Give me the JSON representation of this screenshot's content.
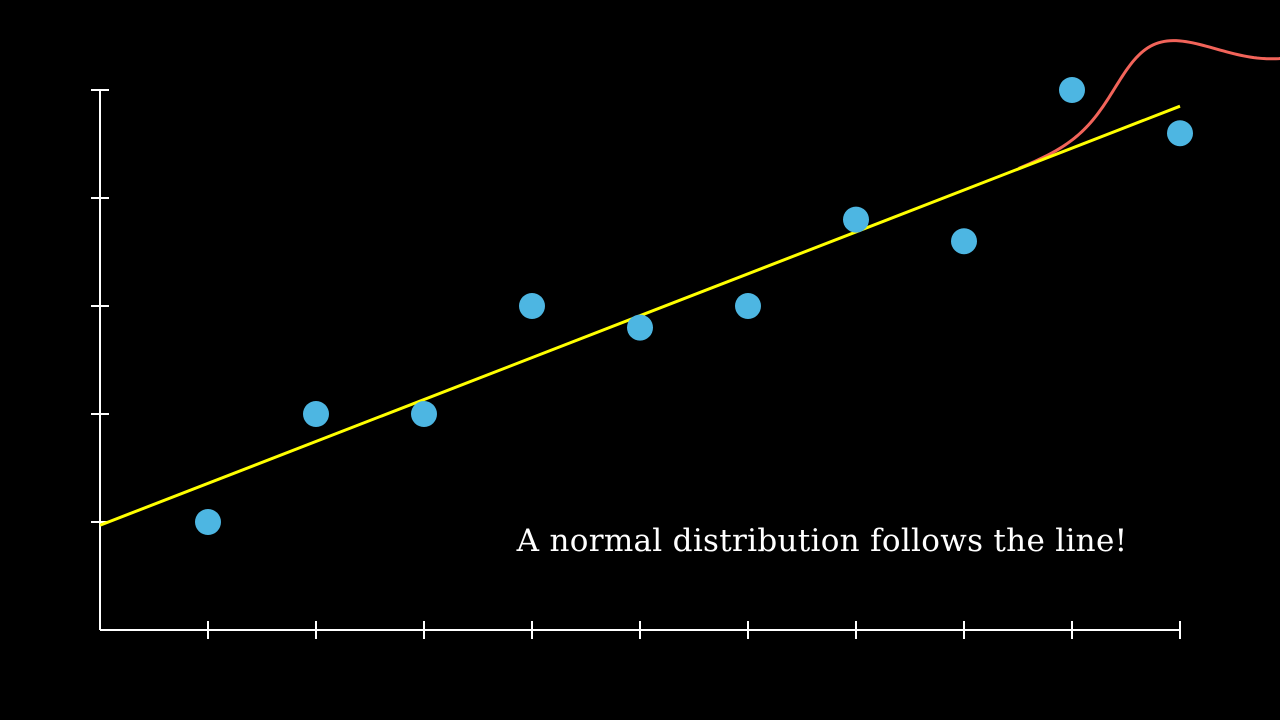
{
  "colors": {
    "background": "#000000",
    "axis": "#ffffff",
    "points": "#4db6e2",
    "regression_line": "#ffff00",
    "normal_curve": "#f2645a",
    "caption": "#ffffff"
  },
  "annotation": {
    "text": "A normal distribution follows the line!"
  },
  "chart_data": {
    "type": "scatter",
    "title": "",
    "xlabel": "",
    "ylabel": "",
    "xlim": [
      0,
      10
    ],
    "ylim": [
      0,
      5
    ],
    "x_ticks": [
      1,
      2,
      3,
      4,
      5,
      6,
      7,
      8,
      9,
      10
    ],
    "y_ticks": [
      1,
      2,
      3,
      4,
      5
    ],
    "tick_labels_shown": false,
    "grid": false,
    "legend": "none",
    "points": [
      {
        "x": 1,
        "y": 1.0
      },
      {
        "x": 2,
        "y": 2.0
      },
      {
        "x": 3,
        "y": 2.0
      },
      {
        "x": 4,
        "y": 3.0
      },
      {
        "x": 5,
        "y": 2.8
      },
      {
        "x": 6,
        "y": 3.0
      },
      {
        "x": 7,
        "y": 3.8
      },
      {
        "x": 8,
        "y": 3.6
      },
      {
        "x": 9,
        "y": 5.0
      },
      {
        "x": 10,
        "y": 4.6
      }
    ],
    "regression_line": {
      "x_start": 0,
      "y_start": 0.97,
      "x_end": 10,
      "y_end": 4.85
    },
    "normal_curve": {
      "mean_x": 10,
      "mean_y": 4.85,
      "std": 0.5,
      "peak_height": 0.62,
      "orientation": "perpendicular-to-line"
    }
  }
}
